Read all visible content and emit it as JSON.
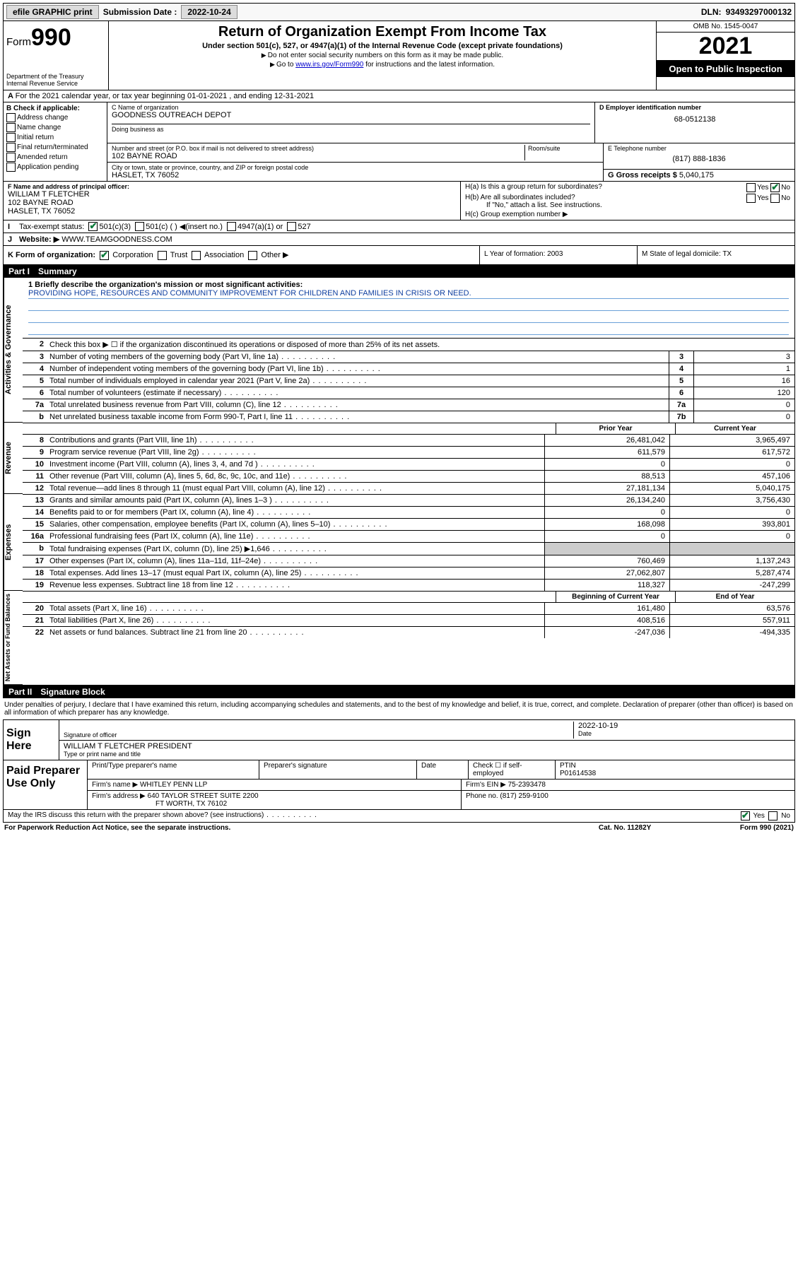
{
  "topbar": {
    "efile": "efile GRAPHIC print",
    "sub_label": "Submission Date : ",
    "sub_date": "2022-10-24",
    "dln_label": "DLN: ",
    "dln": "93493297000132"
  },
  "header": {
    "form_prefix": "Form",
    "form_no": "990",
    "dept": "Department of the Treasury",
    "irs": "Internal Revenue Service",
    "title": "Return of Organization Exempt From Income Tax",
    "sub1": "Under section 501(c), 527, or 4947(a)(1) of the Internal Revenue Code (except private foundations)",
    "sub2": "Do not enter social security numbers on this form as it may be made public.",
    "sub3_pre": "Go to ",
    "sub3_link": "www.irs.gov/Form990",
    "sub3_post": " for instructions and the latest information.",
    "omb": "OMB No. 1545-0047",
    "year": "2021",
    "open": "Open to Public Inspection"
  },
  "rowA": "For the 2021 calendar year, or tax year beginning 01-01-2021   , and ending 12-31-2021",
  "B": {
    "hdr": "B Check if applicable:",
    "items": [
      "Address change",
      "Name change",
      "Initial return",
      "Final return/terminated",
      "Amended return",
      "Application pending"
    ]
  },
  "C": {
    "label": "C Name of organization",
    "name": "GOODNESS OUTREACH DEPOT",
    "dba_label": "Doing business as",
    "street_label": "Number and street (or P.O. box if mail is not delivered to street address)",
    "room_label": "Room/suite",
    "street": "102 BAYNE ROAD",
    "city_label": "City or town, state or province, country, and ZIP or foreign postal code",
    "city": "HASLET, TX  76052"
  },
  "D": {
    "label": "D Employer identification number",
    "val": "68-0512138"
  },
  "E": {
    "label": "E Telephone number",
    "val": "(817) 888-1836"
  },
  "G": {
    "label": "G Gross receipts $",
    "val": "5,040,175"
  },
  "F": {
    "label": "F Name and address of principal officer:",
    "name": "WILLIAM T FLETCHER",
    "addr1": "102 BAYNE ROAD",
    "addr2": "HASLET, TX  76052"
  },
  "H": {
    "a": "H(a)  Is this a group return for subordinates?",
    "b": "H(b)  Are all subordinates included?",
    "b_note": "If \"No,\" attach a list. See instructions.",
    "c": "H(c)  Group exemption number ▶",
    "yes": "Yes",
    "no": "No"
  },
  "I": {
    "label": "Tax-exempt status:",
    "opt1": "501(c)(3)",
    "opt2": "501(c) (  ) ◀(insert no.)",
    "opt3": "4947(a)(1) or",
    "opt4": "527"
  },
  "J": {
    "label": "Website: ▶",
    "val": "WWW.TEAMGOODNESS.COM"
  },
  "K": {
    "label": "K Form of organization:",
    "o1": "Corporation",
    "o2": "Trust",
    "o3": "Association",
    "o4": "Other ▶"
  },
  "L": {
    "label": "L Year of formation: ",
    "val": "2003"
  },
  "M": {
    "label": "M State of legal domicile: ",
    "val": "TX"
  },
  "part1": {
    "num": "Part I",
    "title": "Summary"
  },
  "mission": {
    "l1": "1  Briefly describe the organization's mission or most significant activities:",
    "text": "PROVIDING HOPE, RESOURCES AND COMMUNITY IMPROVEMENT FOR CHILDREN AND FAMILIES IN CRISIS OR NEED."
  },
  "ag": {
    "side": "Activities & Governance",
    "r2": "Check this box ▶ ☐  if the organization discontinued its operations or disposed of more than 25% of its net assets.",
    "rows": [
      {
        "n": "3",
        "d": "Number of voting members of the governing body (Part VI, line 1a)",
        "b": "3",
        "v": "3"
      },
      {
        "n": "4",
        "d": "Number of independent voting members of the governing body (Part VI, line 1b)",
        "b": "4",
        "v": "1"
      },
      {
        "n": "5",
        "d": "Total number of individuals employed in calendar year 2021 (Part V, line 2a)",
        "b": "5",
        "v": "16"
      },
      {
        "n": "6",
        "d": "Total number of volunteers (estimate if necessary)",
        "b": "6",
        "v": "120"
      },
      {
        "n": "7a",
        "d": "Total unrelated business revenue from Part VIII, column (C), line 12",
        "b": "7a",
        "v": "0"
      },
      {
        "n": "b",
        "d": "Net unrelated business taxable income from Form 990-T, Part I, line 11",
        "b": "7b",
        "v": "0"
      }
    ]
  },
  "twocol": {
    "h1": "Prior Year",
    "h2": "Current Year"
  },
  "rev": {
    "side": "Revenue",
    "rows": [
      {
        "n": "8",
        "d": "Contributions and grants (Part VIII, line 1h)",
        "c1": "26,481,042",
        "c2": "3,965,497"
      },
      {
        "n": "9",
        "d": "Program service revenue (Part VIII, line 2g)",
        "c1": "611,579",
        "c2": "617,572"
      },
      {
        "n": "10",
        "d": "Investment income (Part VIII, column (A), lines 3, 4, and 7d )",
        "c1": "0",
        "c2": "0"
      },
      {
        "n": "11",
        "d": "Other revenue (Part VIII, column (A), lines 5, 6d, 8c, 9c, 10c, and 11e)",
        "c1": "88,513",
        "c2": "457,106"
      },
      {
        "n": "12",
        "d": "Total revenue—add lines 8 through 11 (must equal Part VIII, column (A), line 12)",
        "c1": "27,181,134",
        "c2": "5,040,175"
      }
    ]
  },
  "exp": {
    "side": "Expenses",
    "rows": [
      {
        "n": "13",
        "d": "Grants and similar amounts paid (Part IX, column (A), lines 1–3 )",
        "c1": "26,134,240",
        "c2": "3,756,430"
      },
      {
        "n": "14",
        "d": "Benefits paid to or for members (Part IX, column (A), line 4)",
        "c1": "0",
        "c2": "0"
      },
      {
        "n": "15",
        "d": "Salaries, other compensation, employee benefits (Part IX, column (A), lines 5–10)",
        "c1": "168,098",
        "c2": "393,801"
      },
      {
        "n": "16a",
        "d": "Professional fundraising fees (Part IX, column (A), line 11e)",
        "c1": "0",
        "c2": "0"
      },
      {
        "n": "b",
        "d": "Total fundraising expenses (Part IX, column (D), line 25) ▶1,646",
        "c1": "",
        "c2": ""
      },
      {
        "n": "17",
        "d": "Other expenses (Part IX, column (A), lines 11a–11d, 11f–24e)",
        "c1": "760,469",
        "c2": "1,137,243"
      },
      {
        "n": "18",
        "d": "Total expenses. Add lines 13–17 (must equal Part IX, column (A), line 25)",
        "c1": "27,062,807",
        "c2": "5,287,474"
      },
      {
        "n": "19",
        "d": "Revenue less expenses. Subtract line 18 from line 12",
        "c1": "118,327",
        "c2": "-247,299"
      }
    ]
  },
  "nab": {
    "side": "Net Assets or Fund Balances",
    "h1": "Beginning of Current Year",
    "h2": "End of Year",
    "rows": [
      {
        "n": "20",
        "d": "Total assets (Part X, line 16)",
        "c1": "161,480",
        "c2": "63,576"
      },
      {
        "n": "21",
        "d": "Total liabilities (Part X, line 26)",
        "c1": "408,516",
        "c2": "557,911"
      },
      {
        "n": "22",
        "d": "Net assets or fund balances. Subtract line 21 from line 20",
        "c1": "-247,036",
        "c2": "-494,335"
      }
    ]
  },
  "part2": {
    "num": "Part II",
    "title": "Signature Block"
  },
  "sig": {
    "intro": "Under penalties of perjury, I declare that I have examined this return, including accompanying schedules and statements, and to the best of my knowledge and belief, it is true, correct, and complete. Declaration of preparer (other than officer) is based on all information of which preparer has any knowledge.",
    "here": "Sign Here",
    "sig_label": "Signature of officer",
    "date_label": "Date",
    "date": "2022-10-19",
    "name": "WILLIAM T FLETCHER  PRESIDENT",
    "name_label": "Type or print name and title"
  },
  "prep": {
    "label": "Paid Preparer Use Only",
    "h1": "Print/Type preparer's name",
    "h2": "Preparer's signature",
    "h3": "Date",
    "h4": "Check ☐ if self-employed",
    "h5": "PTIN",
    "ptin": "P01614538",
    "firm_l": "Firm's name   ▶",
    "firm": "WHITLEY PENN LLP",
    "ein_l": "Firm's EIN ▶",
    "ein": "75-2393478",
    "addr_l": "Firm's address ▶",
    "addr": "640 TAYLOR STREET SUITE 2200",
    "addr2": "FT WORTH, TX  76102",
    "ph_l": "Phone no.",
    "ph": "(817) 259-9100"
  },
  "foot": {
    "q": "May the IRS discuss this return with the preparer shown above? (see instructions)",
    "yes": "Yes",
    "no": "No"
  },
  "bottom": {
    "l": "For Paperwork Reduction Act Notice, see the separate instructions.",
    "c": "Cat. No. 11282Y",
    "r": "Form 990 (2021)"
  }
}
